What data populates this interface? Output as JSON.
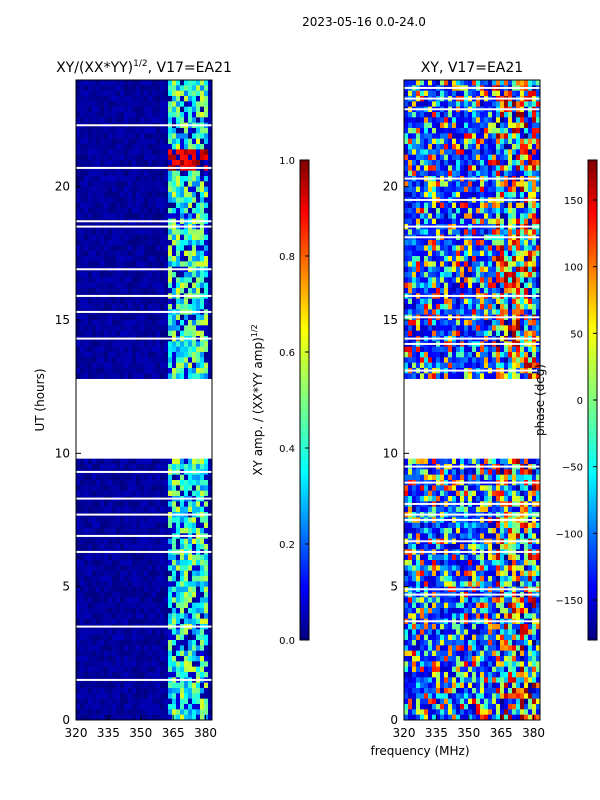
{
  "suptitle": "2023-05-16 0.0-24.0",
  "chart_data": [
    {
      "type": "heatmap",
      "title": "XY/(XX*YY)",
      "title_exponent": "1/2",
      "title_suffix": ", V17=EA21",
      "ylabel": "UT (hours)",
      "xlabel": "",
      "xlim": [
        320,
        383
      ],
      "ylim": [
        0,
        24
      ],
      "xticks": [
        "320",
        "335",
        "350",
        "365",
        "380"
      ],
      "yticks": [
        "0",
        "5",
        "10",
        "15",
        "20"
      ],
      "colorbar": {
        "label": "XY amp. / (XX*YY amp)",
        "label_exponent": "1/2",
        "range": [
          0.0,
          1.0
        ],
        "ticks": [
          "0.0",
          "0.2",
          "0.4",
          "0.6",
          "0.8",
          "1.0"
        ]
      },
      "gap_hours": [
        9.8,
        12.8
      ],
      "description": "mostly low values (~0.0-0.05) with elevated amplitude (0.3-0.8) in 362-382 MHz band; strong peak near 21 h"
    },
    {
      "type": "heatmap",
      "title": "XY, V17=EA21",
      "ylabel": "",
      "xlabel": "frequency (MHz)",
      "xlim": [
        320,
        383
      ],
      "ylim": [
        0,
        24
      ],
      "xticks": [
        "320",
        "335",
        "350",
        "365",
        "380"
      ],
      "yticks": [
        "0",
        "5",
        "10",
        "15",
        "20"
      ],
      "colorbar": {
        "label": "phase (deg)",
        "range": [
          -180,
          180
        ],
        "ticks": [
          "−150",
          "−100",
          "−50",
          "0",
          "50",
          "100",
          "150"
        ]
      },
      "gap_hours": [
        9.8,
        12.8
      ],
      "description": "noisy phase values spanning full range, coherent structures in 362-382 MHz"
    }
  ],
  "colors": {
    "jet_0": "#00007f",
    "jet_1": "#0000ff",
    "jet_2": "#007fff",
    "jet_3": "#00ffff",
    "jet_4": "#7fff7f",
    "jet_5": "#ffff00",
    "jet_6": "#ff7f00",
    "jet_7": "#ff0000",
    "jet_8": "#7f0000"
  }
}
